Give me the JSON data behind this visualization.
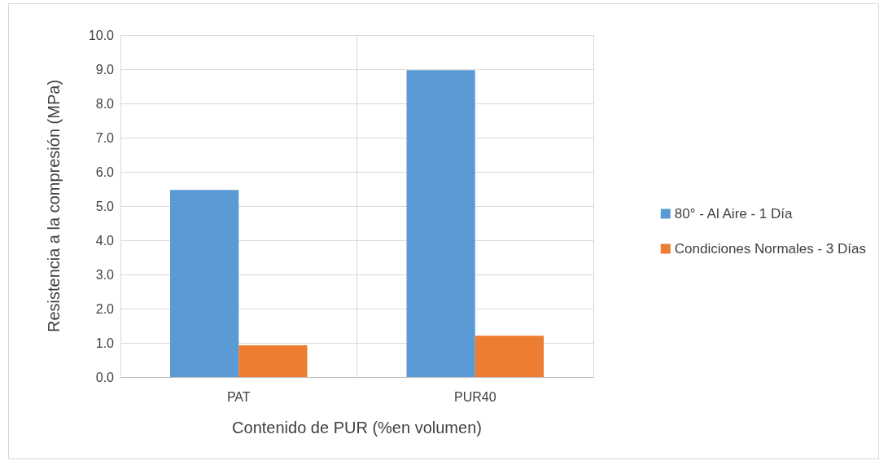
{
  "chart_data": {
    "type": "bar",
    "xlabel": "Contenido de PUR (%en volumen)",
    "ylabel": "Resistencia a la compresión (MPa)",
    "categories": [
      "PAT",
      "PUR40"
    ],
    "series": [
      {
        "name": "80° - Al Aire - 1 Día",
        "color": "#5b9bd5",
        "values": [
          5.47,
          8.97
        ]
      },
      {
        "name": "Condiciones Normales - 3 Días",
        "color": "#ed7d31",
        "values": [
          0.93,
          1.21
        ]
      }
    ],
    "ylim": [
      0,
      10
    ],
    "yticks": [
      {
        "value": 0,
        "label": "0.0"
      },
      {
        "value": 1,
        "label": "1.0"
      },
      {
        "value": 2,
        "label": "2.0"
      },
      {
        "value": 3,
        "label": "3.0"
      },
      {
        "value": 4,
        "label": "4.0"
      },
      {
        "value": 5,
        "label": "5.0"
      },
      {
        "value": 6,
        "label": "6.0"
      },
      {
        "value": 7,
        "label": "7.0"
      },
      {
        "value": 8,
        "label": "8.0"
      },
      {
        "value": 9,
        "label": "9.0"
      },
      {
        "value": 10,
        "label": "10.0"
      }
    ],
    "grid": true,
    "legend": "right"
  }
}
